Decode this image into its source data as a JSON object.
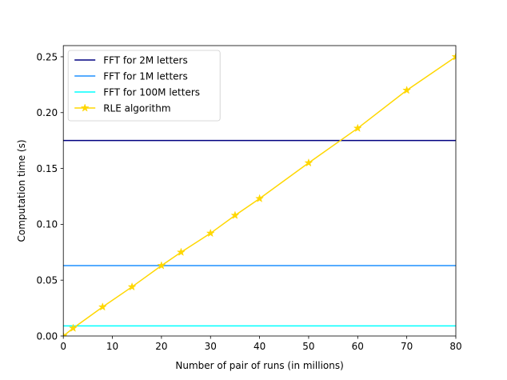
{
  "chart_data": {
    "type": "line",
    "xlabel": "Number of pair of runs (in millions)",
    "ylabel": "Computation time (s)",
    "xlim": [
      0,
      80
    ],
    "ylim": [
      0,
      0.26
    ],
    "xticks": [
      0,
      10,
      20,
      30,
      40,
      50,
      60,
      70,
      80
    ],
    "xtick_labels": [
      "0",
      "10",
      "20",
      "30",
      "40",
      "50",
      "60",
      "70",
      "80"
    ],
    "yticks": [
      0,
      0.05,
      0.1,
      0.15,
      0.2,
      0.25
    ],
    "ytick_labels": [
      "0.00",
      "0.05",
      "0.10",
      "0.15",
      "0.20",
      "0.25"
    ],
    "grid": false,
    "legend_position": "top-left",
    "series": [
      {
        "name": "FFT for 2M letters",
        "color": "#000080",
        "marker": "none",
        "x": [
          0,
          80
        ],
        "y": [
          0.175,
          0.175
        ]
      },
      {
        "name": "FFT for 1M letters",
        "color": "#1e90ff",
        "marker": "none",
        "x": [
          0,
          80
        ],
        "y": [
          0.063,
          0.063
        ]
      },
      {
        "name": "FFT for 100M letters",
        "color": "#00ffff",
        "marker": "none",
        "x": [
          0,
          80
        ],
        "y": [
          0.009,
          0.009
        ]
      },
      {
        "name": "RLE algorithm",
        "color": "#ffd700",
        "marker": "star",
        "x": [
          0,
          2,
          8,
          14,
          20,
          24,
          30,
          35,
          40,
          50,
          60,
          70,
          80
        ],
        "y": [
          0.0,
          0.007,
          0.026,
          0.044,
          0.063,
          0.075,
          0.092,
          0.108,
          0.123,
          0.155,
          0.186,
          0.22,
          0.25
        ]
      }
    ]
  }
}
